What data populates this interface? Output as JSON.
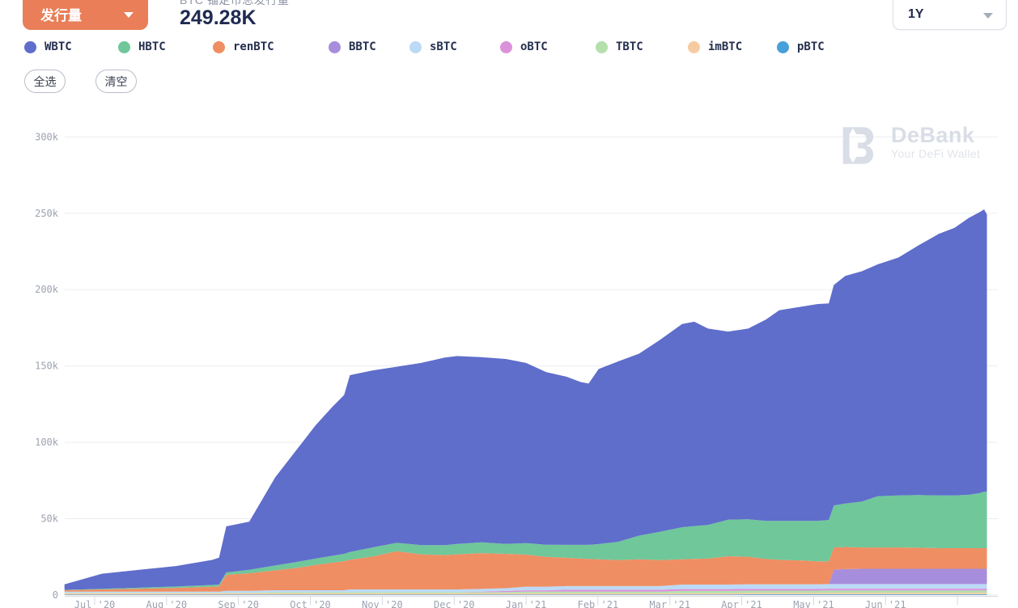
{
  "header": {
    "metric_selector": {
      "label": "发行量"
    },
    "kpi": {
      "label": "BTC 锚定币总发行量",
      "value": "249.28K"
    },
    "range_selector": {
      "value": "1Y"
    }
  },
  "actions": {
    "select_all": "全选",
    "clear": "清空"
  },
  "watermark": {
    "name": "DeBank",
    "tagline": "Your DeFi Wallet"
  },
  "chart_data": {
    "type": "area",
    "stacked": true,
    "stack_order": "bottom-to-top: pBTC, imBTC, TBTC, oBTC, sBTC, BBTC, renBTC, HBTC, WBTC (reverse of legend order)",
    "unit": "thousands of BTC",
    "x_unit": "months since 2020-07-01",
    "ylim": [
      0,
      300
    ],
    "grid": "horizontal gridlines on, light gray",
    "legend_position": "top",
    "y_tick_labels": [
      "0",
      "50k",
      "100k",
      "150k",
      "200k",
      "250k",
      "300k"
    ],
    "y_tick_values": [
      0,
      50,
      100,
      150,
      200,
      250,
      300
    ],
    "x_tick_labels": [
      "Jul '20",
      "Aug '20",
      "Sep '20",
      "Oct '20",
      "Nov '20",
      "Dec '20",
      "Jan '21",
      "Feb '21",
      "Mar '21",
      "Apr '21",
      "May '21",
      "Jun '21"
    ],
    "x": [
      -0.42,
      0.1,
      0.62,
      1.13,
      1.63,
      1.73,
      1.83,
      2.15,
      2.51,
      2.79,
      3.07,
      3.3,
      3.47,
      3.55,
      3.86,
      4.2,
      4.54,
      4.87,
      5.04,
      5.38,
      5.72,
      6.0,
      6.28,
      6.56,
      6.76,
      6.87,
      7.01,
      7.28,
      7.57,
      7.86,
      8.17,
      8.34,
      8.53,
      8.81,
      9.09,
      9.34,
      9.52,
      9.85,
      10.05,
      10.21,
      10.28,
      10.44,
      10.67,
      10.89,
      11.18,
      11.46,
      11.74,
      11.96,
      12.16,
      12.3,
      12.37,
      12.41
    ],
    "series": [
      {
        "name": "WBTC",
        "color": "#5F6DCB",
        "values": [
          3.6,
          9.9,
          11.7,
          13.4,
          16.4,
          17.6,
          30.2,
          31.5,
          57.6,
          72.5,
          87.1,
          97.3,
          104.0,
          115.8,
          115.8,
          115.3,
          119.3,
          122.8,
          123.0,
          121.3,
          121.1,
          118.0,
          113.0,
          110.1,
          106.6,
          105.6,
          114.6,
          118.1,
          119.1,
          125.6,
          133.1,
          133.8,
          128.6,
          123.1,
          124.9,
          131.9,
          137.9,
          140.4,
          141.9,
          141.8,
          144.3,
          149.0,
          150.8,
          151.8,
          155.8,
          163.5,
          171.3,
          175.3,
          181.3,
          183.8,
          184.8,
          181.6
        ]
      },
      {
        "name": "HBTC",
        "color": "#6FC79A",
        "values": [
          0.2,
          0.4,
          0.6,
          0.9,
          1.1,
          1.2,
          1.5,
          2.2,
          3.2,
          3.8,
          4.2,
          4.5,
          4.8,
          5.0,
          6.0,
          5.5,
          6.0,
          6.5,
          6.8,
          7.0,
          6.5,
          7.5,
          8.0,
          8.5,
          9.0,
          9.2,
          10.0,
          12.0,
          15.5,
          18.5,
          21.0,
          21.5,
          22.0,
          24.0,
          24.5,
          25.0,
          25.5,
          26.0,
          26.5,
          27.0,
          27.5,
          28.5,
          30.0,
          33.5,
          34.0,
          34.5,
          34.5,
          34.5,
          35.0,
          36.0,
          37.0,
          37.0
        ]
      },
      {
        "name": "renBTC",
        "color": "#EF8E63",
        "values": [
          1.0,
          1.5,
          2.0,
          2.5,
          3.3,
          3.5,
          10.5,
          11.5,
          13.0,
          14.5,
          16.5,
          18.0,
          19.0,
          19.5,
          21.5,
          25.0,
          23.0,
          22.5,
          23.0,
          23.5,
          22.5,
          21.0,
          19.5,
          18.5,
          18.0,
          17.8,
          17.5,
          17.0,
          17.5,
          17.0,
          16.5,
          16.8,
          17.0,
          18.5,
          18.0,
          16.5,
          16.0,
          15.5,
          15.0,
          15.0,
          14.5,
          14.5,
          14.0,
          14.0,
          14.0,
          13.8,
          13.5,
          13.5,
          13.5,
          13.5,
          13.5,
          13.5
        ]
      },
      {
        "name": "BBTC",
        "color": "#A78EDC",
        "values": [
          0,
          0,
          0,
          0,
          0,
          0,
          0,
          0,
          0,
          0,
          0,
          0,
          0,
          0,
          0,
          0,
          0,
          0,
          0,
          0,
          0,
          0,
          0,
          0,
          0,
          0,
          0,
          0,
          0,
          0,
          0,
          0,
          0,
          0,
          0,
          0,
          0,
          0,
          0,
          0,
          9.5,
          9.8,
          10,
          10,
          10,
          10,
          10,
          10,
          10,
          10,
          10,
          10
        ]
      },
      {
        "name": "sBTC",
        "color": "#BCDAF5",
        "values": [
          0.7,
          0.7,
          0.7,
          0.7,
          0.7,
          0.7,
          1.3,
          1.3,
          1.3,
          1.3,
          1.3,
          1.3,
          1.3,
          1.8,
          1.8,
          1.8,
          1.8,
          1.8,
          1.8,
          1.8,
          1.8,
          2.4,
          2.4,
          2.4,
          2.4,
          2.4,
          2.4,
          2.4,
          2.4,
          2.4,
          3.0,
          3.0,
          3.0,
          3.0,
          3.0,
          3.0,
          3.0,
          3.0,
          3.0,
          3.0,
          3.0,
          3.0,
          3.0,
          3.0,
          3.0,
          3.0,
          3.0,
          3.0,
          3.0,
          3.0,
          3.0,
          3.0
        ]
      },
      {
        "name": "oBTC",
        "color": "#DA92DA",
        "values": [
          0,
          0,
          0,
          0,
          0,
          0,
          0,
          0,
          0,
          0,
          0,
          0,
          0,
          0,
          0,
          0,
          0,
          0,
          0,
          0.3,
          0.8,
          0.8,
          0.8,
          1.2,
          1.2,
          1.2,
          1.2,
          1.2,
          1.2,
          1.2,
          1.2,
          1.2,
          1.2,
          1.2,
          1.2,
          1.2,
          1.2,
          1.2,
          1.2,
          1.2,
          1.2,
          1.2,
          1.2,
          1.2,
          1.2,
          1.2,
          1.2,
          1.2,
          1.2,
          1.2,
          1.2,
          1.2
        ]
      },
      {
        "name": "TBTC",
        "color": "#B3E0AB",
        "values": [
          0.3,
          0.3,
          0.3,
          0.3,
          0.3,
          0.3,
          0.3,
          0.3,
          0.7,
          0.7,
          0.7,
          0.7,
          0.7,
          0.7,
          0.7,
          0.7,
          0.7,
          0.7,
          0.7,
          0.7,
          0.7,
          1.1,
          1.1,
          1.1,
          1.1,
          1.1,
          1.1,
          1.1,
          1.1,
          1.1,
          1.5,
          1.5,
          1.5,
          1.5,
          1.5,
          1.5,
          1.5,
          1.5,
          1.5,
          1.5,
          1.5,
          1.5,
          1.5,
          1.5,
          1.5,
          1.5,
          1.5,
          1.5,
          1.5,
          1.5,
          1.5,
          1.5
        ]
      },
      {
        "name": "imBTC",
        "color": "#F7CBA2",
        "values": [
          0.9,
          0.9,
          0.9,
          0.9,
          0.9,
          0.9,
          0.9,
          0.9,
          0.9,
          0.9,
          0.9,
          0.9,
          0.9,
          0.9,
          0.9,
          0.9,
          0.9,
          0.9,
          0.9,
          0.9,
          0.9,
          0.9,
          0.9,
          0.9,
          0.9,
          0.9,
          0.9,
          0.9,
          0.9,
          0.9,
          0.9,
          0.9,
          0.9,
          0.9,
          0.9,
          0.9,
          0.9,
          0.9,
          0.9,
          1.0,
          1.0,
          1.0,
          1.0,
          1.0,
          1.0,
          1.0,
          1.0,
          1.0,
          1.0,
          1.0,
          1.0,
          1.0
        ]
      },
      {
        "name": "pBTC",
        "color": "#47A0D9",
        "values": [
          0.3,
          0.3,
          0.3,
          0.3,
          0.3,
          0.3,
          0.3,
          0.3,
          0.3,
          0.3,
          0.3,
          0.3,
          0.3,
          0.3,
          0.3,
          0.3,
          0.3,
          0.3,
          0.3,
          0.3,
          0.3,
          0.3,
          0.3,
          0.3,
          0.3,
          0.3,
          0.3,
          0.3,
          0.3,
          0.3,
          0.3,
          0.3,
          0.3,
          0.3,
          0.5,
          0.5,
          0.5,
          0.5,
          0.5,
          0.5,
          0.5,
          0.5,
          0.5,
          0.5,
          0.5,
          0.5,
          0.5,
          0.5,
          0.5,
          0.5,
          0.5,
          0.5
        ]
      }
    ]
  }
}
